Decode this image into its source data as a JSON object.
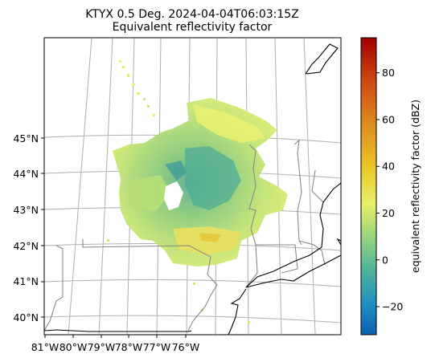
{
  "chart_data": {
    "type": "heatmap",
    "title": "KTYX 0.5 Deg. 2024-04-04T06:03:15Z",
    "subtitle": "Equivalent reflectivity factor",
    "colorbar_label": "equivalent reflectivity factor (dBZ)",
    "colorbar_range": [
      -32,
      95
    ],
    "colorbar_ticks": [
      "−20",
      "0",
      "20",
      "40",
      "60",
      "80"
    ],
    "colorbar_tick_values": [
      -20,
      0,
      20,
      40,
      60,
      80
    ],
    "lat_ticks": [
      "40°N",
      "41°N",
      "42°N",
      "43°N",
      "44°N",
      "45°N"
    ],
    "lat_tick_values": [
      40,
      41,
      42,
      43,
      44,
      45
    ],
    "lon_ticks": [
      "81°W",
      "80°W",
      "79°W",
      "78°W",
      "77°W",
      "76°W"
    ],
    "lon_tick_values": [
      -81,
      -80,
      -79,
      -78,
      -77,
      -76
    ],
    "grid": true,
    "colormap": [
      "#0a5fb0",
      "#1f8fc0",
      "#4fb59a",
      "#9fd67a",
      "#e8f06a",
      "#e8c82a",
      "#e09020",
      "#d04a12",
      "#a00000"
    ]
  }
}
